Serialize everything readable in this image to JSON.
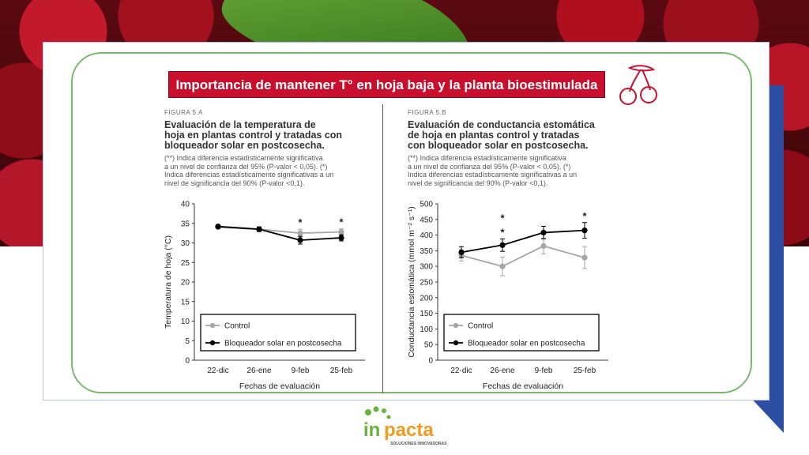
{
  "slide_title": "Importancia de mantener T° en hoja baja y la planta bioestimulada",
  "colors": {
    "title_bg": "#c8102e",
    "frame": "#7ab870",
    "control": "#a6a6a6",
    "treated": "#000000",
    "accent_blue": "#2d4fa3"
  },
  "figure_a": {
    "label": "FIGURA 5.A",
    "title_lines": [
      "Evaluación de la temperatura de",
      "hoja en plantas control y tratadas con",
      "bloqueador solar en postcosecha."
    ],
    "note_lines": [
      "(**) Indica diferencia estadísticamente significativa",
      "a un nivel de confianza del 95% (P-valor < 0,05). (*)",
      "Indica diferencias estadísticamente significativas a un",
      "nivel de significancia del 90% (P-valor <0,1)."
    ]
  },
  "figure_b": {
    "label": "FIGURA 5.B",
    "title_lines": [
      "Evaluación de conductancia estomática",
      "de hoja en plantas control y tratadas",
      "con bloqueador solar en postcosecha."
    ],
    "note_lines": [
      "(**) Indica diferencia estadísticamente significativa",
      "a un nivel de confianza del 95% (P-valor < 0,05). (*)",
      "Indica diferencias estadísticamente significativas a un",
      "nivel de significancia del 90% (P-valor <0,1)."
    ]
  },
  "chart_data": [
    {
      "type": "line",
      "categories": [
        "22-dic",
        "26-ene",
        "9-feb",
        "25-feb"
      ],
      "xlabel": "Fechas de evaluación",
      "ylabel": "Temperatura de hoja (°C)",
      "ylim": [
        0,
        40
      ],
      "yticks": [
        0,
        5,
        10,
        15,
        20,
        25,
        30,
        35,
        40
      ],
      "series": [
        {
          "name": "Control",
          "values": [
            34.0,
            33.5,
            32.5,
            32.8
          ],
          "errors": [
            0.4,
            0.6,
            1.0,
            0.8
          ]
        },
        {
          "name": "Bloqueador solar en postcosecha",
          "values": [
            34.2,
            33.5,
            30.7,
            31.3
          ],
          "errors": [
            0.4,
            0.6,
            1.0,
            0.8
          ]
        }
      ],
      "annotations": [
        {
          "category": "9-feb",
          "text": "*"
        },
        {
          "category": "25-feb",
          "text": "*"
        }
      ],
      "legend": "bottom-left",
      "grid": false
    },
    {
      "type": "line",
      "categories": [
        "22-dic",
        "26-ene",
        "9-feb",
        "25-feb"
      ],
      "xlabel": "Fechas de evaluación",
      "ylabel": "Conductancia estomática (mmol m⁻² s⁻¹)",
      "ylim": [
        0,
        500
      ],
      "yticks": [
        0,
        50,
        100,
        150,
        200,
        250,
        300,
        350,
        400,
        450,
        500
      ],
      "series": [
        {
          "name": "Control",
          "values": [
            335,
            300,
            365,
            328
          ],
          "errors": [
            18,
            30,
            25,
            35
          ]
        },
        {
          "name": "Bloqueador solar en postcosecha",
          "values": [
            345,
            368,
            408,
            415
          ],
          "errors": [
            18,
            20,
            20,
            25
          ]
        }
      ],
      "annotations": [
        {
          "category": "26-ene",
          "text": "*"
        },
        {
          "category": "26-ene",
          "text": "*"
        },
        {
          "category": "25-feb",
          "text": "*"
        }
      ],
      "legend": "bottom-left",
      "grid": false
    }
  ],
  "logo": {
    "text_main": "inpacta",
    "text_sub": "SOLUCIONES INNOVADORAS"
  }
}
